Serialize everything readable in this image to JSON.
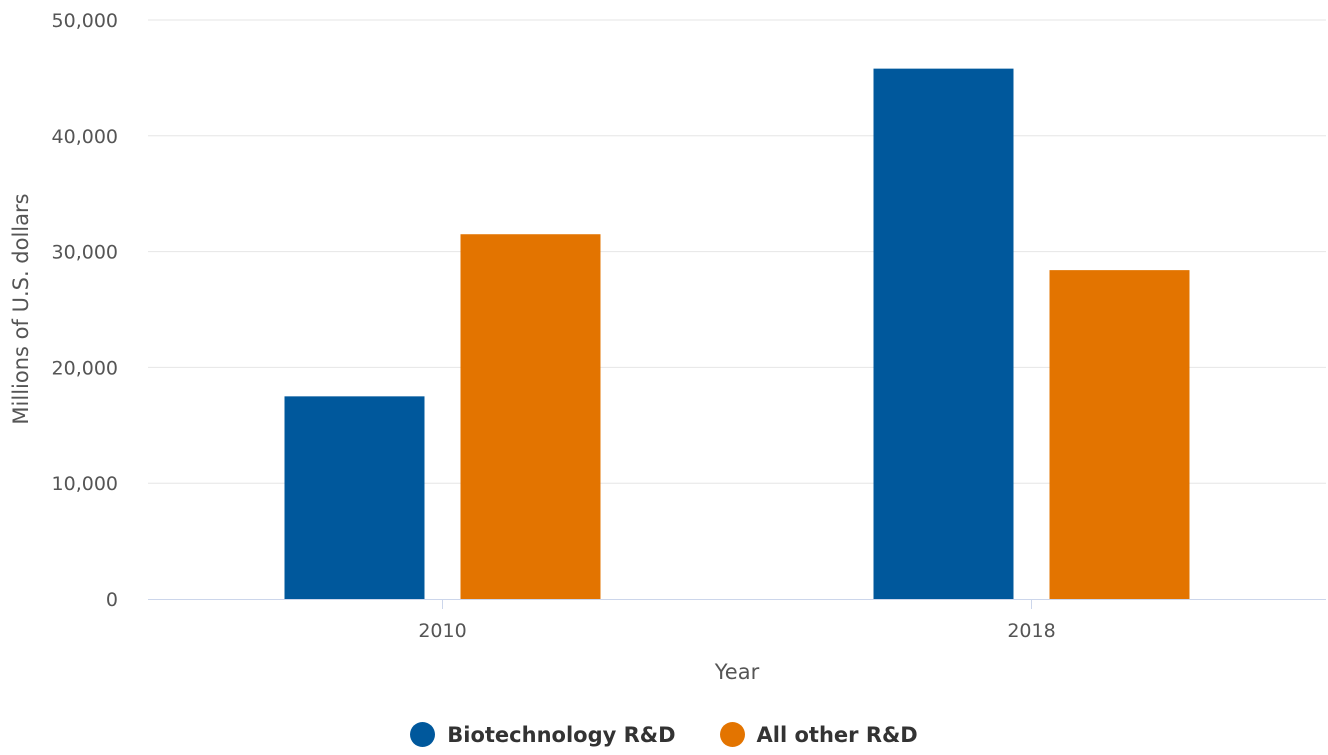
{
  "chart_data": {
    "type": "bar",
    "categories": [
      "2010",
      "2018"
    ],
    "series": [
      {
        "name": "Biotechnology R&D",
        "values": [
          17500,
          45800
        ],
        "color": "#00589c"
      },
      {
        "name": "All other R&D",
        "values": [
          31500,
          28400
        ],
        "color": "#e37400"
      }
    ],
    "title": "",
    "xlabel": "Year",
    "ylabel": "Millions of U.S. dollars",
    "ylim": [
      0,
      50000
    ],
    "yticks": [
      {
        "value": 0,
        "label": "0"
      },
      {
        "value": 10000,
        "label": "10,000"
      },
      {
        "value": 20000,
        "label": "20,000"
      },
      {
        "value": 30000,
        "label": "30,000"
      },
      {
        "value": 40000,
        "label": "40,000"
      },
      {
        "value": 50000,
        "label": "50,000"
      }
    ],
    "grid": true,
    "legend_position": "bottom-center"
  },
  "colors": {
    "grid": "#e6e6e6",
    "axis_line": "#ccd6eb",
    "text": "#555555"
  }
}
